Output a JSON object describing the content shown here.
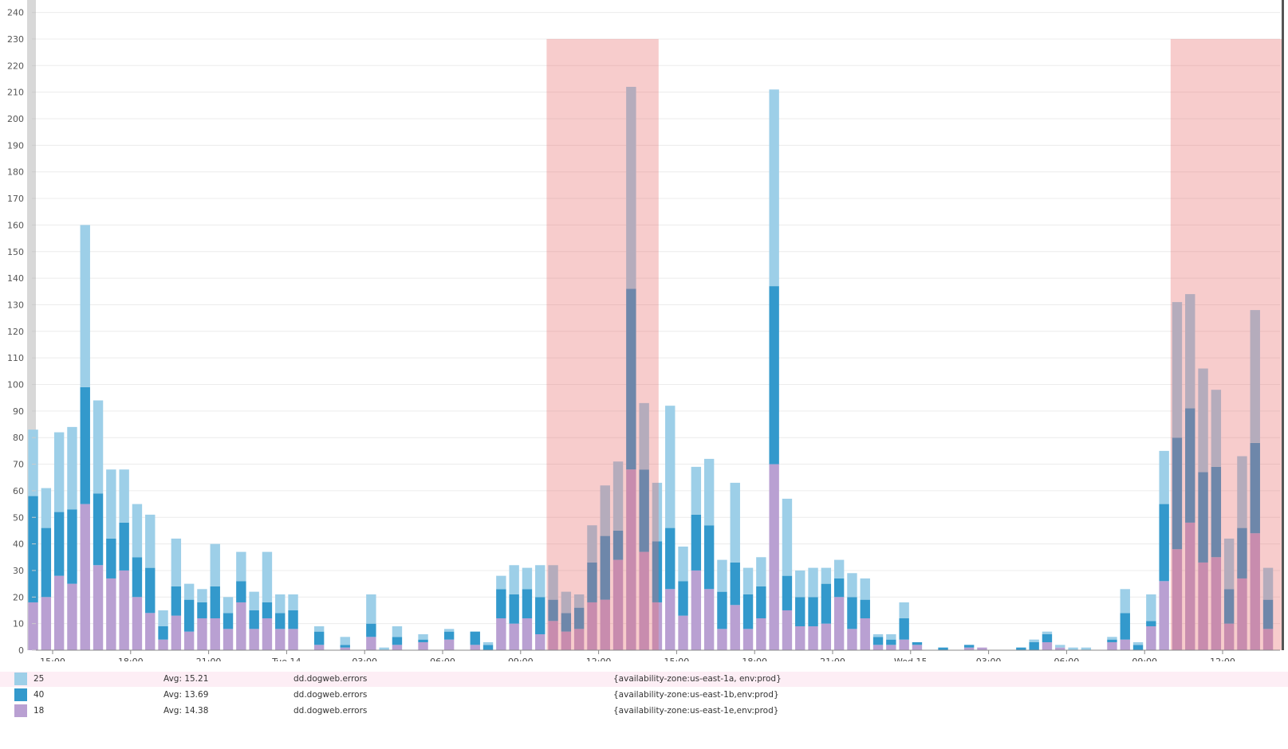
{
  "chart_data": {
    "type": "bar",
    "stacked": true,
    "ylim": [
      0,
      240
    ],
    "yticks": [
      0,
      10,
      20,
      30,
      40,
      50,
      60,
      70,
      80,
      90,
      100,
      110,
      120,
      130,
      140,
      150,
      160,
      170,
      180,
      190,
      200,
      210,
      220,
      230,
      240
    ],
    "grid": true,
    "x": [
      "Mon 14:00",
      "Mon 14:30",
      "Mon 15:00",
      "Mon 15:30",
      "Mon 16:00",
      "Mon 16:30",
      "Mon 17:00",
      "Mon 17:30",
      "Mon 18:00",
      "Mon 18:30",
      "Mon 19:00",
      "Mon 19:30",
      "Mon 20:00",
      "Mon 20:30",
      "Mon 21:00",
      "Mon 21:30",
      "Mon 22:00",
      "Mon 22:30",
      "Mon 23:00",
      "Mon 23:30",
      "Tue 00:00",
      "Tue 00:30",
      "Tue 01:00",
      "Tue 01:30",
      "Tue 02:00",
      "Tue 02:30",
      "Tue 03:00",
      "Tue 03:30",
      "Tue 04:00",
      "Tue 04:30",
      "Tue 05:00",
      "Tue 05:30",
      "Tue 06:00",
      "Tue 06:30",
      "Tue 07:00",
      "Tue 07:30",
      "Tue 08:00",
      "Tue 08:30",
      "Tue 09:00",
      "Tue 09:30",
      "Tue 10:00",
      "Tue 10:30",
      "Tue 11:00",
      "Tue 11:30",
      "Tue 12:00",
      "Tue 12:30",
      "Tue 13:00",
      "Tue 13:30",
      "Tue 14:00",
      "Tue 14:30",
      "Tue 15:00",
      "Tue 15:30",
      "Tue 16:00",
      "Tue 16:30",
      "Tue 17:00",
      "Tue 17:30",
      "Tue 18:00",
      "Tue 18:30",
      "Tue 19:00",
      "Tue 19:30",
      "Tue 20:00",
      "Tue 20:30",
      "Tue 21:00",
      "Tue 21:30",
      "Tue 22:00",
      "Tue 22:30",
      "Tue 23:00",
      "Tue 23:30",
      "Wed 00:00",
      "Wed 00:30",
      "Wed 01:00",
      "Wed 01:30",
      "Wed 02:00",
      "Wed 02:30",
      "Wed 03:00",
      "Wed 03:30",
      "Wed 04:00",
      "Wed 04:30",
      "Wed 05:00",
      "Wed 05:30",
      "Wed 06:00",
      "Wed 06:30",
      "Wed 07:00",
      "Wed 07:30",
      "Wed 08:00",
      "Wed 08:30",
      "Wed 09:00",
      "Wed 09:30",
      "Wed 10:00",
      "Wed 10:30",
      "Wed 11:00",
      "Wed 11:30",
      "Wed 12:00",
      "Wed 12:30",
      "Wed 13:00",
      "Wed 13:30"
    ],
    "xticks": [
      {
        "label": "15:00",
        "at": "Mon 15:00"
      },
      {
        "label": "18:00",
        "at": "Mon 18:00"
      },
      {
        "label": "21:00",
        "at": "Mon 21:00"
      },
      {
        "label": "Tue 14",
        "at": "Tue 00:00"
      },
      {
        "label": "03:00",
        "at": "Tue 03:00"
      },
      {
        "label": "06:00",
        "at": "Tue 06:00"
      },
      {
        "label": "09:00",
        "at": "Tue 09:00"
      },
      {
        "label": "12:00",
        "at": "Tue 12:00"
      },
      {
        "label": "15:00",
        "at": "Tue 15:00"
      },
      {
        "label": "18:00",
        "at": "Tue 18:00"
      },
      {
        "label": "21:00",
        "at": "Tue 21:00"
      },
      {
        "label": "Wed 15",
        "at": "Wed 00:00"
      },
      {
        "label": "03:00",
        "at": "Wed 03:00"
      },
      {
        "label": "06:00",
        "at": "Wed 06:00"
      },
      {
        "label": "09:00",
        "at": "Wed 09:00"
      },
      {
        "label": "12:00",
        "at": "Wed 12:00"
      }
    ],
    "highlights": [
      {
        "from": "Tue 10:00",
        "to": "Tue 14:00",
        "y_top": 230,
        "color": "#e86464"
      },
      {
        "from": "Wed 10:00",
        "to": "Wed 14:00",
        "y_top": 230,
        "color": "#e86464"
      }
    ],
    "series": [
      {
        "key": "e",
        "color": "#b9a0d2",
        "values": [
          18,
          20,
          28,
          25,
          55,
          32,
          27,
          30,
          20,
          14,
          4,
          13,
          7,
          12,
          12,
          8,
          18,
          8,
          12,
          8,
          8,
          0,
          2,
          0,
          1,
          0,
          5,
          0,
          2,
          0,
          3,
          0,
          4,
          0,
          2,
          0,
          12,
          10,
          12,
          6,
          11,
          7,
          8,
          18,
          19,
          34,
          68,
          37,
          18,
          23,
          13,
          30,
          23,
          8,
          17,
          8,
          12,
          70,
          15,
          9,
          9,
          10,
          20,
          8,
          12,
          2,
          2,
          4,
          2,
          0,
          0,
          0,
          1,
          1,
          0,
          0,
          0,
          0,
          3,
          1,
          0,
          0,
          0,
          3,
          4,
          0,
          9,
          26,
          38,
          48,
          33,
          35,
          10,
          27,
          44,
          8
        ]
      },
      {
        "key": "b",
        "color": "#3399cc",
        "values": [
          40,
          26,
          24,
          28,
          44,
          27,
          15,
          18,
          15,
          17,
          5,
          11,
          12,
          6,
          12,
          6,
          8,
          7,
          6,
          6,
          7,
          0,
          5,
          0,
          1,
          0,
          5,
          0,
          3,
          0,
          1,
          0,
          3,
          0,
          5,
          2,
          11,
          11,
          11,
          14,
          8,
          7,
          8,
          15,
          24,
          11,
          68,
          31,
          23,
          23,
          13,
          21,
          24,
          14,
          16,
          13,
          12,
          67,
          13,
          11,
          11,
          15,
          7,
          12,
          7,
          3,
          2,
          8,
          1,
          0,
          1,
          0,
          1,
          0,
          0,
          0,
          1,
          3,
          3,
          0,
          0,
          0,
          0,
          1,
          10,
          2,
          2,
          29,
          42,
          43,
          34,
          34,
          13,
          19,
          34,
          11
        ]
      },
      {
        "key": "a",
        "color": "#9dcfe8",
        "values": [
          25,
          15,
          30,
          31,
          61,
          35,
          26,
          20,
          20,
          20,
          6,
          18,
          6,
          5,
          16,
          6,
          11,
          7,
          19,
          7,
          6,
          0,
          2,
          0,
          3,
          0,
          11,
          1,
          4,
          0,
          2,
          0,
          1,
          0,
          0,
          1,
          5,
          11,
          8,
          12,
          13,
          8,
          5,
          14,
          19,
          26,
          76,
          25,
          22,
          46,
          13,
          18,
          25,
          12,
          30,
          10,
          11,
          74,
          29,
          10,
          11,
          6,
          7,
          9,
          8,
          1,
          2,
          6,
          0,
          0,
          0,
          0,
          0,
          0,
          0,
          0,
          0,
          1,
          1,
          1,
          1,
          1,
          0,
          1,
          9,
          1,
          10,
          20,
          51,
          43,
          39,
          29,
          19,
          27,
          50,
          12
        ]
      }
    ]
  },
  "legend": [
    {
      "color": "#9dcfe8",
      "value": "25",
      "avg": "Avg: 15.21",
      "metric": "dd.dogweb.errors",
      "tags": "{availability-zone:us-east-1a, env:prod}",
      "highlighted": true
    },
    {
      "color": "#3399cc",
      "value": "40",
      "avg": "Avg: 13.69",
      "metric": "dd.dogweb.errors",
      "tags": "{availability-zone:us-east-1b,env:prod}"
    },
    {
      "color": "#b9a0d2",
      "value": "18",
      "avg": "Avg: 14.38",
      "metric": "dd.dogweb.errors",
      "tags": "{availability-zone:us-east-1e,env:prod}"
    }
  ]
}
